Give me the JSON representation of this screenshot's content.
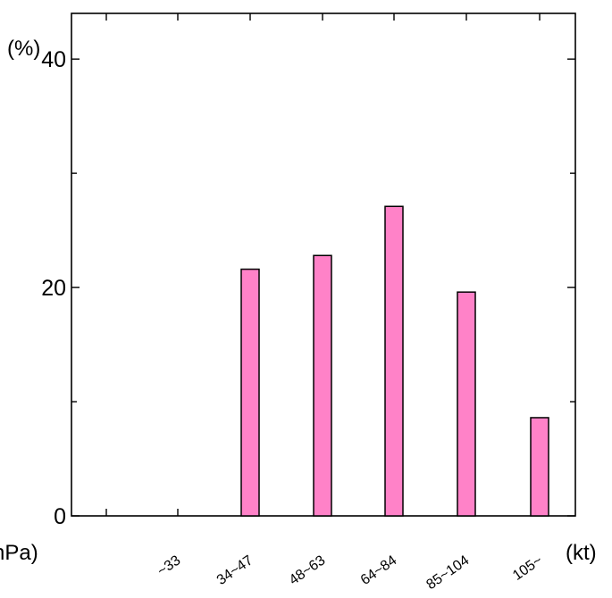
{
  "chart_data": {
    "type": "bar",
    "categories": [
      "~33",
      "34~47",
      "48~63",
      "64~84",
      "85~104",
      "105~"
    ],
    "series": [
      {
        "values": [
          0,
          21.6,
          22.8,
          27.1,
          19.6,
          8.6
        ]
      }
    ],
    "y_unit": "(%)",
    "x_unit": "(kt)",
    "x_unit_left": "hPa)",
    "ylim": [
      0,
      44
    ],
    "yticks": [
      0,
      20,
      40
    ],
    "bar_color": "#ff82c8",
    "grid": false
  }
}
